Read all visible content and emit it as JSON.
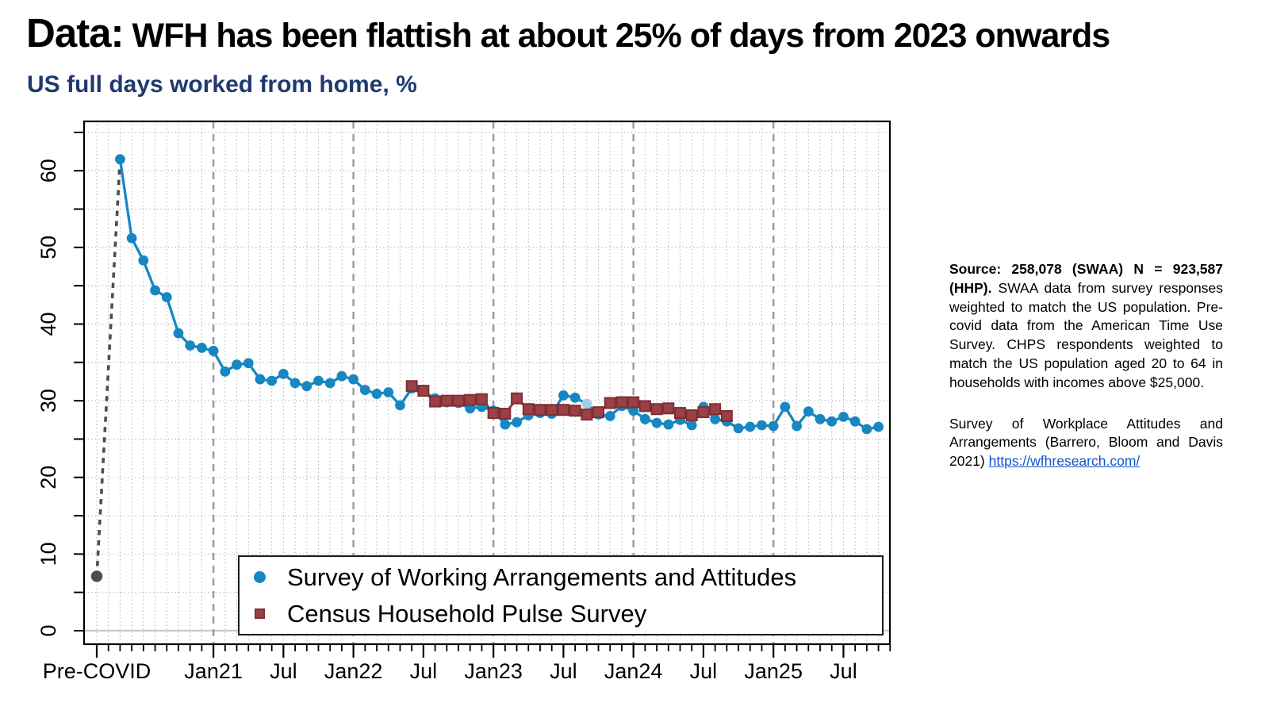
{
  "header": {
    "title_prefix": "Data:",
    "title_rest": " WFH has been flattish at about 25% of days from 2023 onwards",
    "subtitle": "US full days worked from home, %"
  },
  "side_notes": {
    "para1_bold": "Source: 258,078 (SWAA) N = 923,587 (HHP).",
    "para1_rest": " SWAA data from survey responses weighted to match the US population. Pre-covid data from the American Time Use Survey. CHPS respondents weighted to match the US population aged 20 to 64 in households with incomes above $25,000.",
    "para2_text": "Survey of Workplace Attitudes and Arrangements (Barrero, Bloom and Davis 2021) ",
    "para2_link": "https://wfhresearch.com/"
  },
  "chart_data": {
    "type": "line",
    "title": "US full days worked from home, %",
    "xlabel": "",
    "ylabel": "",
    "ylim": [
      0,
      66.4
    ],
    "yticks": [
      0,
      10,
      20,
      30,
      40,
      50,
      60
    ],
    "y_minor_step": 5,
    "grid": "dotted monthly vertical and 5-unit horizontal; dashed vertical rules at each January",
    "legend_position": "bottom-left box",
    "x_labels": [
      {
        "label": "Pre-COVID",
        "slot": 0
      },
      {
        "label": "Jan21",
        "slot": 10
      },
      {
        "label": "Jul",
        "slot": 16
      },
      {
        "label": "Jan22",
        "slot": 22
      },
      {
        "label": "Jul",
        "slot": 28
      },
      {
        "label": "Jan23",
        "slot": 34
      },
      {
        "label": "Jul",
        "slot": 40
      },
      {
        "label": "Jan24",
        "slot": 46
      },
      {
        "label": "Jul",
        "slot": 52
      },
      {
        "label": "Jan25",
        "slot": 58
      },
      {
        "label": "Jul",
        "slot": 64
      }
    ],
    "january_rule_slots": [
      10,
      22,
      34,
      46,
      58
    ],
    "precovid_point": {
      "label": "Pre-COVID",
      "value": 7.1,
      "slot": 0
    },
    "series": [
      {
        "name": "Survey of Working Arrangements and Attitudes",
        "marker": "circle",
        "color": "#1787c1",
        "start_month": "2020-05",
        "start_slot": 2,
        "values": [
          61.5,
          51.2,
          48.3,
          44.4,
          43.5,
          38.8,
          37.2,
          36.9,
          36.5,
          33.8,
          34.7,
          34.9,
          32.8,
          32.6,
          33.5,
          32.3,
          31.9,
          32.6,
          32.3,
          33.2,
          32.8,
          31.4,
          30.9,
          31.1,
          29.4,
          31.6,
          31.2,
          30.3,
          29.8,
          29.7,
          29.0,
          29.2,
          28.7,
          26.9,
          27.2,
          28.1,
          28.4,
          28.3,
          30.7,
          30.4,
          29.6,
          28.2,
          28.0,
          29.3,
          28.7,
          27.6,
          27.1,
          26.9,
          27.5,
          26.8,
          29.2,
          27.6,
          27.3,
          26.4,
          26.6,
          26.8,
          26.7,
          29.2,
          26.7,
          28.6,
          27.6,
          27.3,
          27.9,
          27.3,
          26.3,
          26.6
        ],
        "light_point": {
          "index": 40,
          "month": "2023-09",
          "value": 29.6,
          "color": "#a6cbe3"
        }
      },
      {
        "name": "Census Household Pulse Survey",
        "marker": "square",
        "color": "#9c4046",
        "start_month": "2022-06",
        "start_slot": 27,
        "values": [
          31.9,
          31.3,
          29.9,
          30.0,
          30.0,
          30.1,
          30.2,
          28.4,
          28.3,
          30.3,
          28.9,
          28.8,
          28.8,
          28.8,
          28.7,
          28.2,
          28.5,
          29.7,
          29.8,
          29.8,
          29.3,
          28.9,
          29.0,
          28.4,
          28.1,
          28.5,
          28.9,
          28.0
        ]
      }
    ],
    "legend": [
      {
        "label": "Survey of Working Arrangements and Attitudes",
        "marker": "circle",
        "color": "#1787c1"
      },
      {
        "label": "Census Household Pulse Survey",
        "marker": "square",
        "color": "#9c4046"
      }
    ],
    "colors": {
      "swaa": "#1787c1",
      "swaa_light": "#a6cbe3",
      "chps_fill": "#9c4046",
      "chps_edge": "#7c3035",
      "precovid": "#4d4d4d",
      "january_rule": "#999999",
      "grid_dots": "#a9a9a9",
      "zero_line": "#c9c9c9",
      "axis": "#000000",
      "subtitle_text": "#1e3a6d",
      "link_text": "#1155cc"
    }
  }
}
